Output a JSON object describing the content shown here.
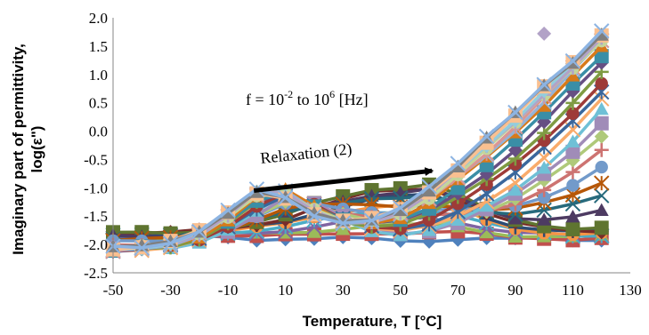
{
  "chart_data": {
    "type": "line",
    "title": "",
    "xlabel": "Temperature, T [°C]",
    "ylabel_line1": "Imaginary part of permittivity,",
    "ylabel_line2": "log(ε\")",
    "xlim": [
      -50,
      130
    ],
    "ylim": [
      -2.5,
      2.0
    ],
    "xticks": [
      -50,
      -30,
      -10,
      10,
      30,
      50,
      70,
      90,
      110,
      130
    ],
    "yticks": [
      "-2.5",
      "-2.0",
      "-1.5",
      "-1.0",
      "-0.5",
      "0.0",
      "0.5",
      "1.0",
      "1.5",
      "2.0"
    ],
    "grid": false,
    "legend": "none",
    "annotations": {
      "frequency_prefix": "f = 10",
      "frequency_exp1": "-2",
      "frequency_mid": " to 10",
      "frequency_exp2": "6",
      "frequency_suffix": " [Hz]",
      "relaxation": "Relaxation (2)",
      "relaxation_arrow": {
        "from": [
          -1,
          -1.05
        ],
        "to": [
          61,
          -0.7
        ]
      }
    },
    "x": [
      -50,
      -40,
      -30,
      -20,
      -10,
      0,
      10,
      20,
      30,
      40,
      50,
      60,
      70,
      80,
      90,
      100,
      110,
      120
    ],
    "series_count": 32,
    "series_colors": [
      "#4f81bd",
      "#c0504d",
      "#9bbb59",
      "#8064a2",
      "#4bacc6",
      "#f79646",
      "#2c4d75",
      "#772c2a",
      "#5f7530",
      "#4d3b62",
      "#276a7c",
      "#b65708",
      "#729aca",
      "#cd7371",
      "#afc97a",
      "#a08cb8",
      "#6fc0d6",
      "#f9ab6b",
      "#3a679c",
      "#9e3b38",
      "#7f9b42",
      "#664f83",
      "#3a8ea6",
      "#d77a1a",
      "#95b3d7",
      "#d99694",
      "#c3d69b",
      "#b2a2c7",
      "#93cddd",
      "#fac090",
      "#7f7f7f",
      "#8db4e2"
    ],
    "series_markers": [
      "diamond",
      "square",
      "triangle",
      "x",
      "star",
      "circle",
      "plus"
    ],
    "representative_series": [
      {
        "values": [
          -1.9,
          -1.92,
          -1.9,
          -1.85,
          -1.85,
          -1.9,
          -1.9,
          -1.92,
          -1.9,
          -1.9,
          -1.92,
          -1.92,
          -1.9,
          -1.9,
          -1.92,
          -1.9,
          -1.92,
          -1.9
        ]
      },
      {
        "values": [
          -1.8,
          -1.8,
          -1.8,
          -1.75,
          -1.7,
          -1.6,
          -1.5,
          -1.3,
          -1.15,
          -1.0,
          -0.95,
          -0.9,
          -1.1,
          -1.4,
          -1.6,
          -1.7,
          -1.75,
          -1.75
        ]
      },
      {
        "values": [
          -2.1,
          -2.08,
          -2.05,
          -1.95,
          -1.75,
          -1.45,
          -1.15,
          -1.3,
          -1.55,
          -1.75,
          -1.85,
          -1.8,
          -1.65,
          -1.4,
          -1.1,
          -0.7,
          -0.25,
          0.3
        ]
      },
      {
        "values": [
          -2.1,
          -2.05,
          -2.0,
          -1.85,
          -1.55,
          -1.15,
          -1.05,
          -1.35,
          -1.6,
          -1.6,
          -1.5,
          -1.25,
          -0.85,
          -0.45,
          0.0,
          0.5,
          1.05,
          1.55
        ]
      },
      {
        "values": [
          -2.05,
          -2.05,
          -1.95,
          -1.75,
          -1.4,
          -1.05,
          -1.2,
          -1.5,
          -1.6,
          -1.55,
          -1.35,
          -1.0,
          -0.6,
          -0.1,
          0.35,
          0.85,
          1.25,
          1.75
        ]
      }
    ],
    "outlier_points": [
      {
        "x": 100,
        "y": 1.72
      }
    ]
  }
}
